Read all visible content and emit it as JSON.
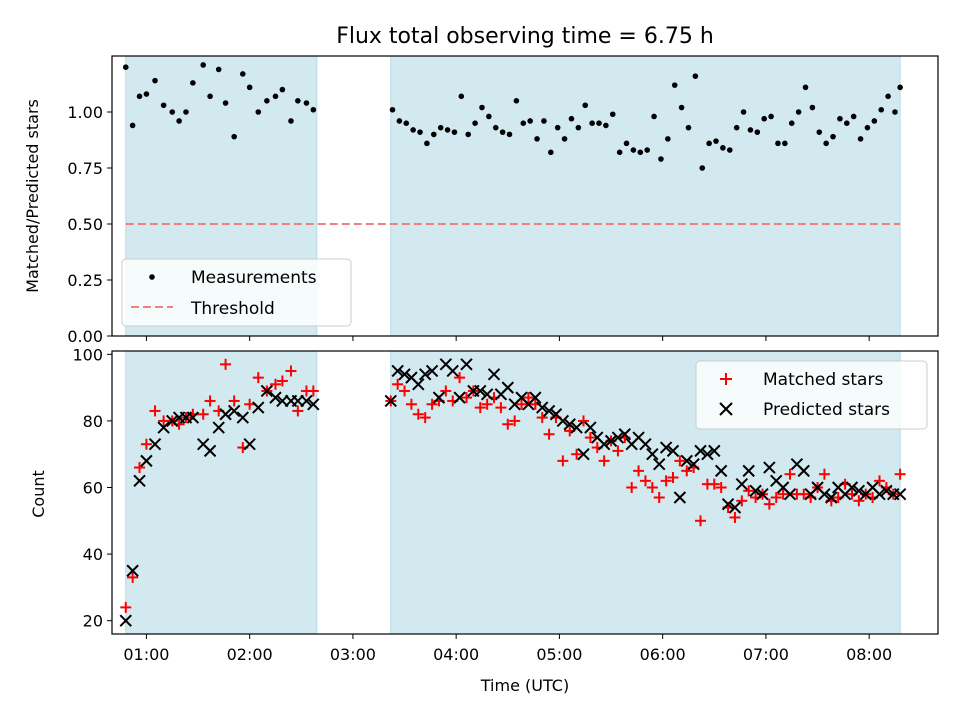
{
  "chart_data": [
    {
      "type": "scatter",
      "title": "Flux total observing time = 6.75 h",
      "xlabel": "",
      "ylabel": "Matched/Predicted stars",
      "xlim": [
        "00:40",
        "08:40"
      ],
      "ylim": [
        0,
        1.25
      ],
      "yticks": [
        "0.00",
        "0.25",
        "0.50",
        "0.75",
        "1.00"
      ],
      "shaded_intervals": [
        [
          "00:48",
          "02:39"
        ],
        [
          "03:22",
          "08:18"
        ]
      ],
      "legend_position": "lower-left",
      "series": [
        {
          "name": "Measurements",
          "marker": "dot",
          "color": "#000000",
          "x": [
            "00:48",
            "00:52",
            "00:56",
            "01:00",
            "01:05",
            "01:10",
            "01:15",
            "01:19",
            "01:23",
            "01:27",
            "01:33",
            "01:37",
            "01:42",
            "01:46",
            "01:51",
            "01:56",
            "02:00",
            "02:05",
            "02:10",
            "02:15",
            "02:19",
            "02:24",
            "02:28",
            "02:33",
            "02:37",
            "03:23",
            "03:27",
            "03:31",
            "03:35",
            "03:39",
            "03:43",
            "03:47",
            "03:51",
            "03:55",
            "03:59",
            "04:03",
            "04:07",
            "04:11",
            "04:15",
            "04:19",
            "04:23",
            "04:27",
            "04:31",
            "04:35",
            "04:39",
            "04:43",
            "04:47",
            "04:51",
            "04:55",
            "04:59",
            "05:03",
            "05:07",
            "05:11",
            "05:15",
            "05:19",
            "05:23",
            "05:27",
            "05:31",
            "05:35",
            "05:39",
            "05:43",
            "05:47",
            "05:51",
            "05:55",
            "05:59",
            "06:03",
            "06:07",
            "06:11",
            "06:15",
            "06:19",
            "06:23",
            "06:27",
            "06:31",
            "06:35",
            "06:39",
            "06:43",
            "06:47",
            "06:51",
            "06:55",
            "06:59",
            "07:03",
            "07:07",
            "07:11",
            "07:15",
            "07:19",
            "07:23",
            "07:27",
            "07:31",
            "07:35",
            "07:39",
            "07:43",
            "07:47",
            "07:51",
            "07:55",
            "07:59",
            "08:03",
            "08:07",
            "08:11",
            "08:15",
            "08:18"
          ],
          "values": [
            1.2,
            0.94,
            1.07,
            1.08,
            1.14,
            1.03,
            1.0,
            0.96,
            1.0,
            1.13,
            1.21,
            1.07,
            1.19,
            1.04,
            0.89,
            1.17,
            1.11,
            1.0,
            1.05,
            1.07,
            1.1,
            0.96,
            1.05,
            1.04,
            1.01,
            1.01,
            0.96,
            0.95,
            0.92,
            0.91,
            0.86,
            0.9,
            0.93,
            0.92,
            0.91,
            1.07,
            0.9,
            0.95,
            1.02,
            0.98,
            0.93,
            0.91,
            0.9,
            1.05,
            0.95,
            0.96,
            0.88,
            0.96,
            0.82,
            0.93,
            0.88,
            0.97,
            0.93,
            1.03,
            0.95,
            0.95,
            0.94,
            0.99,
            0.82,
            0.86,
            0.83,
            0.82,
            0.83,
            0.98,
            0.79,
            0.88,
            1.12,
            1.02,
            0.93,
            1.16,
            0.75,
            0.86,
            0.87,
            0.84,
            0.83,
            0.93,
            1.0,
            0.92,
            0.91,
            0.97,
            0.98,
            0.86,
            0.86,
            0.95,
            1.0,
            1.11,
            1.02,
            0.91,
            0.86,
            0.89,
            0.97,
            0.95,
            0.98,
            0.88,
            0.93,
            0.96,
            1.01,
            1.07,
            1.0,
            1.11
          ]
        },
        {
          "name": "Threshold",
          "style": "dashed",
          "color": "#f08080",
          "x": [
            "00:48",
            "08:18"
          ],
          "values": [
            0.5,
            0.5
          ]
        }
      ]
    },
    {
      "type": "scatter",
      "title": "",
      "xlabel": "Time (UTC)",
      "ylabel": "Count",
      "xlim": [
        "00:40",
        "08:40"
      ],
      "ylim": [
        16,
        101
      ],
      "xticks": [
        "01:00",
        "02:00",
        "03:00",
        "04:00",
        "05:00",
        "06:00",
        "07:00",
        "08:00"
      ],
      "yticks": [
        "20",
        "40",
        "60",
        "80",
        "100"
      ],
      "shaded_intervals": [
        [
          "00:48",
          "02:39"
        ],
        [
          "03:22",
          "08:18"
        ]
      ],
      "legend_position": "top-right",
      "series": [
        {
          "name": "Matched stars",
          "marker": "plus",
          "color": "#ff0000",
          "x": [
            "00:48",
            "00:52",
            "00:56",
            "01:00",
            "01:05",
            "01:10",
            "01:15",
            "01:19",
            "01:23",
            "01:27",
            "01:33",
            "01:37",
            "01:42",
            "01:46",
            "01:51",
            "01:56",
            "02:00",
            "02:05",
            "02:10",
            "02:15",
            "02:19",
            "02:24",
            "02:28",
            "02:33",
            "02:37",
            "03:22",
            "03:26",
            "03:30",
            "03:34",
            "03:38",
            "03:42",
            "03:46",
            "03:50",
            "03:54",
            "03:58",
            "04:02",
            "04:06",
            "04:10",
            "04:14",
            "04:18",
            "04:22",
            "04:26",
            "04:30",
            "04:34",
            "04:38",
            "04:42",
            "04:46",
            "04:50",
            "04:54",
            "04:58",
            "05:02",
            "05:06",
            "05:10",
            "05:14",
            "05:18",
            "05:22",
            "05:26",
            "05:30",
            "05:34",
            "05:38",
            "05:42",
            "05:46",
            "05:50",
            "05:54",
            "05:58",
            "06:02",
            "06:06",
            "06:10",
            "06:14",
            "06:18",
            "06:22",
            "06:26",
            "06:30",
            "06:34",
            "06:38",
            "06:42",
            "06:46",
            "06:50",
            "06:54",
            "06:58",
            "07:02",
            "07:06",
            "07:10",
            "07:14",
            "07:18",
            "07:22",
            "07:26",
            "07:30",
            "07:34",
            "07:38",
            "07:42",
            "07:46",
            "07:50",
            "07:54",
            "07:58",
            "08:02",
            "08:06",
            "08:10",
            "08:14",
            "08:18"
          ],
          "values": [
            24,
            33,
            66,
            73,
            83,
            80,
            80,
            79,
            81,
            82,
            82,
            86,
            83,
            97,
            86,
            72,
            85,
            93,
            89,
            91,
            92,
            95,
            83,
            89,
            89,
            86,
            91,
            89,
            85,
            82,
            81,
            85,
            86,
            89,
            86,
            93,
            87,
            89,
            84,
            85,
            87,
            84,
            79,
            80,
            85,
            87,
            85,
            81,
            76,
            81,
            68,
            77,
            70,
            80,
            75,
            72,
            68,
            74,
            71,
            75,
            60,
            65,
            62,
            60,
            57,
            62,
            63,
            68,
            65,
            66,
            50,
            61,
            61,
            60,
            54,
            51,
            56,
            59,
            57,
            58,
            55,
            57,
            58,
            64,
            58,
            58,
            57,
            60,
            64,
            56,
            57,
            61,
            58,
            56,
            58,
            57,
            62,
            60,
            58,
            64
          ]
        },
        {
          "name": "Predicted stars",
          "marker": "x",
          "color": "#000000",
          "x": [
            "00:48",
            "00:52",
            "00:56",
            "01:00",
            "01:05",
            "01:10",
            "01:15",
            "01:19",
            "01:23",
            "01:27",
            "01:33",
            "01:37",
            "01:42",
            "01:46",
            "01:51",
            "01:56",
            "02:00",
            "02:05",
            "02:10",
            "02:15",
            "02:19",
            "02:24",
            "02:28",
            "02:33",
            "02:37",
            "03:22",
            "03:26",
            "03:30",
            "03:34",
            "03:38",
            "03:42",
            "03:46",
            "03:50",
            "03:54",
            "03:58",
            "04:02",
            "04:06",
            "04:10",
            "04:14",
            "04:18",
            "04:22",
            "04:26",
            "04:30",
            "04:34",
            "04:38",
            "04:42",
            "04:46",
            "04:50",
            "04:54",
            "04:58",
            "05:02",
            "05:06",
            "05:10",
            "05:14",
            "05:18",
            "05:22",
            "05:26",
            "05:30",
            "05:34",
            "05:38",
            "05:42",
            "05:46",
            "05:50",
            "05:54",
            "05:58",
            "06:02",
            "06:06",
            "06:10",
            "06:14",
            "06:18",
            "06:22",
            "06:26",
            "06:30",
            "06:34",
            "06:38",
            "06:42",
            "06:46",
            "06:50",
            "06:54",
            "06:58",
            "07:02",
            "07:06",
            "07:10",
            "07:14",
            "07:18",
            "07:22",
            "07:26",
            "07:30",
            "07:34",
            "07:38",
            "07:42",
            "07:46",
            "07:50",
            "07:54",
            "07:58",
            "08:02",
            "08:06",
            "08:10",
            "08:14",
            "08:18"
          ],
          "values": [
            20,
            35,
            62,
            68,
            73,
            78,
            80,
            81,
            81,
            81,
            73,
            71,
            78,
            82,
            83,
            81,
            73,
            84,
            89,
            87,
            86,
            86,
            86,
            86,
            85,
            86,
            95,
            94,
            93,
            91,
            94,
            95,
            87,
            97,
            95,
            87,
            97,
            89,
            89,
            88,
            94,
            88,
            90,
            85,
            87,
            85,
            87,
            84,
            83,
            82,
            80,
            79,
            78,
            70,
            78,
            75,
            73,
            74,
            75,
            76,
            73,
            75,
            73,
            70,
            67,
            72,
            71,
            57,
            68,
            67,
            71,
            70,
            71,
            65,
            55,
            54,
            61,
            65,
            59,
            58,
            66,
            62,
            60,
            58,
            67,
            65,
            58,
            60,
            58,
            57,
            60,
            58,
            60,
            59,
            58,
            60,
            58,
            59,
            58,
            58
          ]
        }
      ]
    }
  ],
  "legend_top": {
    "items": [
      {
        "label": "Measurements"
      },
      {
        "label": "Threshold"
      }
    ]
  },
  "legend_bottom": {
    "items": [
      {
        "label": "Matched stars"
      },
      {
        "label": "Predicted stars"
      }
    ]
  },
  "colors": {
    "shade": "#d3e9f0",
    "shade_edge": "#b7dbe5",
    "matched": "#ff0000",
    "predicted": "#000000",
    "threshold": "#f08080"
  }
}
